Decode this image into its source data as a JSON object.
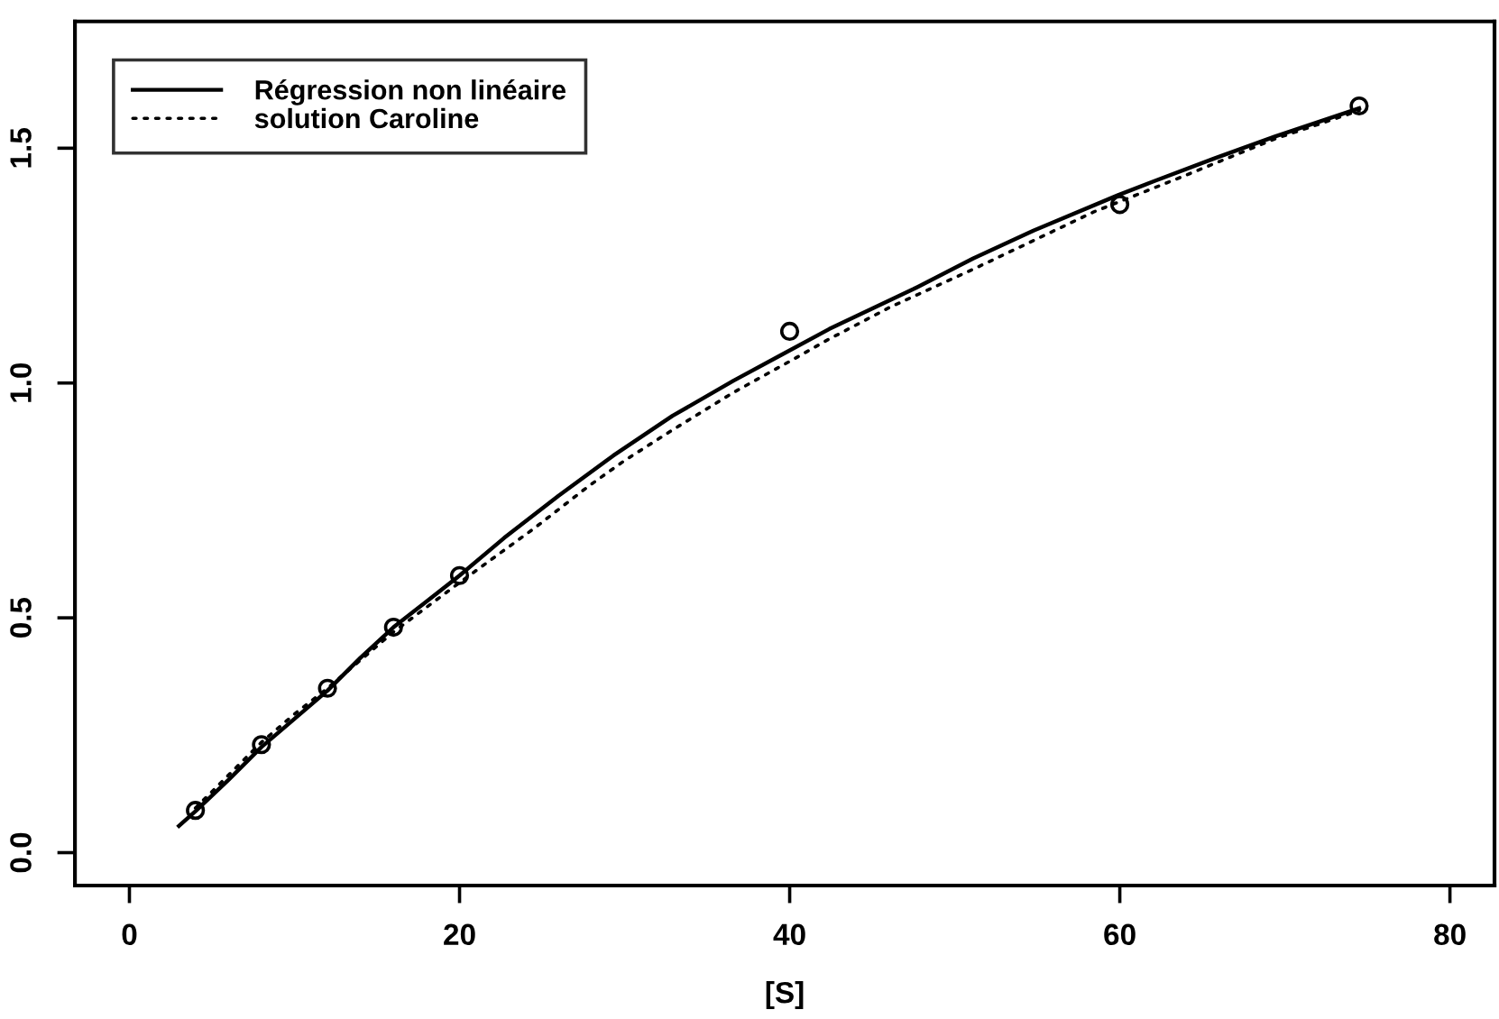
{
  "chart_data": {
    "type": "line",
    "xlabel": "[S]",
    "xlim": [
      -3.3,
      82.7
    ],
    "ylim": [
      -0.07,
      1.77
    ],
    "xticks": [
      0,
      20,
      40,
      60,
      80
    ],
    "yticks": [
      {
        "value": 0,
        "label": "0.0"
      },
      0.5,
      {
        "value": 1,
        "label": "1.0"
      },
      1.5
    ],
    "grid": false,
    "legend": "top left",
    "series": [
      {
        "type": "scatter",
        "color": "#000000",
        "marker": "circle",
        "x": [
          4,
          8,
          12,
          16,
          20,
          40,
          60,
          74.5
        ],
        "values": [
          0.09,
          0.23,
          0.35,
          0.48,
          0.59,
          1.11,
          1.38,
          1.59
        ]
      },
      {
        "name": "Régression non linéaire",
        "color": "#000000",
        "line_style": "solid",
        "marker": "none",
        "x": [
          3,
          4,
          6,
          8,
          10,
          12,
          14,
          16,
          18,
          20,
          22.7,
          26,
          29.3,
          32.9,
          36.6,
          39.5,
          42.4,
          47.5,
          51.1,
          54.8,
          59.9,
          62.1,
          65.7,
          69.4,
          74.5
        ],
        "values": [
          0.057,
          0.088,
          0.155,
          0.225,
          0.285,
          0.345,
          0.415,
          0.48,
          0.535,
          0.59,
          0.67,
          0.76,
          0.845,
          0.93,
          1.005,
          1.06,
          1.115,
          1.2,
          1.265,
          1.325,
          1.4,
          1.43,
          1.478,
          1.525,
          1.585
        ]
      },
      {
        "name": "solution Caroline",
        "color": "#000000",
        "line_style": "dotted",
        "marker": "none",
        "x": [
          4,
          6,
          8,
          10,
          12,
          16,
          20,
          24.5,
          27.8,
          30,
          32.9,
          36.6,
          40.2,
          42.2,
          46,
          51.1,
          58.4,
          63.9,
          69.4,
          74.5
        ],
        "values": [
          0.095,
          0.165,
          0.235,
          0.295,
          0.35,
          0.47,
          0.575,
          0.69,
          0.78,
          0.835,
          0.9,
          0.98,
          1.05,
          1.09,
          1.16,
          1.242,
          1.364,
          1.441,
          1.52,
          1.58
        ]
      }
    ]
  }
}
